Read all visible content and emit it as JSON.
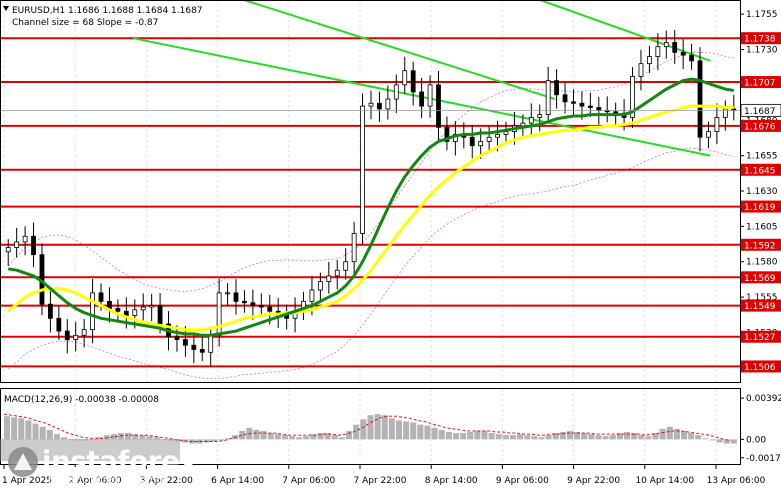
{
  "header": {
    "symbol_line": "EURUSD,H1  1.1686 1.1688 1.1684 1.1687",
    "channel_line": "Channel size = 68 Slope = -0.87"
  },
  "macd": {
    "label": "MACD(12,26,9) -0.00038 -0.00008",
    "ticks": [
      "0.00392",
      "0.00",
      "-0.00175"
    ],
    "tick_values": [
      0.00392,
      0.0,
      -0.00175
    ],
    "range": [
      -0.00215,
      0.0045
    ],
    "hist": [
      0.0022,
      0.0021,
      0.002,
      0.0018,
      0.0015,
      0.0012,
      0.0009,
      0.0005,
      0.0002,
      0.0,
      -0.0001,
      -0.0001,
      0.0,
      0.0002,
      0.0004,
      0.0005,
      0.0006,
      0.0006,
      0.0005,
      0.0004,
      0.0003,
      0.0002,
      0.0,
      -0.0001,
      -0.0002,
      -0.0003,
      -0.0004,
      -0.0004,
      -0.0003,
      -0.0002,
      -0.0001,
      0.0001,
      0.0004,
      0.0008,
      0.0011,
      0.0009,
      0.0008,
      0.0006,
      0.0005,
      0.0004,
      0.0003,
      0.0002,
      0.0003,
      0.0005,
      0.0006,
      0.0006,
      0.0004,
      0.0002,
      0.0008,
      0.0014,
      0.0019,
      0.0023,
      0.0024,
      0.0023,
      0.002,
      0.0018,
      0.0017,
      0.0016,
      0.0014,
      0.0013,
      0.0011,
      0.0009,
      0.0007,
      0.0006,
      0.0006,
      0.0007,
      0.0008,
      0.0008,
      0.0006,
      0.0005,
      0.0004,
      0.0004,
      0.0005,
      0.0004,
      0.0003,
      0.0002,
      0.0004,
      0.0006,
      0.0007,
      0.0008,
      0.0007,
      0.0006,
      0.0005,
      0.0004,
      0.0003,
      0.0004,
      0.0006,
      0.0007,
      0.0006,
      0.0004,
      0.0003,
      0.0006,
      0.001,
      0.0012,
      0.001,
      0.0008,
      0.0006,
      0.0004,
      0.0001,
      -0.0001,
      -0.0003,
      -0.0004,
      -0.0004
    ],
    "signal": [
      0.0024,
      0.0023,
      0.0022,
      0.0021,
      0.0019,
      0.0017,
      0.0015,
      0.0012,
      0.0009,
      0.0006,
      0.0004,
      0.0002,
      0.0001,
      0.0001,
      0.0001,
      0.0002,
      0.0003,
      0.0004,
      0.0004,
      0.0004,
      0.0004,
      0.0003,
      0.0002,
      0.0001,
      0.0,
      -0.0001,
      -0.0002,
      -0.0002,
      -0.0002,
      -0.0002,
      -0.0002,
      -0.0001,
      0.0001,
      0.0003,
      0.0005,
      0.0006,
      0.0006,
      0.0006,
      0.0006,
      0.0005,
      0.0004,
      0.0004,
      0.0004,
      0.0004,
      0.0004,
      0.0005,
      0.0005,
      0.0004,
      0.0005,
      0.0007,
      0.001,
      0.0014,
      0.0018,
      0.0021,
      0.0022,
      0.0022,
      0.0021,
      0.002,
      0.0018,
      0.0017,
      0.0015,
      0.0013,
      0.0011,
      0.001,
      0.0009,
      0.0008,
      0.0008,
      0.0008,
      0.0008,
      0.0007,
      0.0007,
      0.0006,
      0.0006,
      0.0005,
      0.0005,
      0.0004,
      0.0004,
      0.0005,
      0.0005,
      0.0006,
      0.0006,
      0.0006,
      0.0006,
      0.0005,
      0.0005,
      0.0005,
      0.0005,
      0.0005,
      0.0005,
      0.0005,
      0.0004,
      0.0005,
      0.0006,
      0.0007,
      0.0008,
      0.0008,
      0.0007,
      0.0006,
      0.0005,
      0.0004,
      0.0002,
      0.0,
      -0.0001
    ]
  },
  "watermark": {
    "brand": "instaforex",
    "tagline": "Instant Forex Trading"
  },
  "chart_data": {
    "type": "candlestick",
    "symbol": "EURUSD",
    "timeframe": "H1",
    "y_range": [
      1.1495,
      1.1765
    ],
    "y_ticks": [
      "1.1755",
      "1.1730",
      "1.1705",
      "1.1680",
      "1.1655",
      "1.1630",
      "1.1605",
      "1.1580",
      "1.1555",
      "1.1530",
      "1.1505"
    ],
    "x_labels": [
      "1 Apr 2025",
      "2 Apr 06:00",
      "3 Apr 22:00",
      "6 Apr 14:00",
      "7 Apr 06:00",
      "7 Apr 22:00",
      "8 Apr 14:00",
      "9 Apr 06:00",
      "9 Apr 22:00",
      "10 Apr 14:00",
      "13 Apr 06:00"
    ],
    "price_label": {
      "value": "1.1687",
      "price": 1.1687
    },
    "levels": [
      {
        "price": 1.1738,
        "label": "1.1738"
      },
      {
        "price": 1.1707,
        "label": "1.1707"
      },
      {
        "price": 1.1676,
        "label": "1.1676"
      },
      {
        "price": 1.1645,
        "label": "1.1645"
      },
      {
        "price": 1.1619,
        "label": "1.1619"
      },
      {
        "price": 1.1592,
        "label": "1.1592"
      },
      {
        "price": 1.1569,
        "label": "1.1569"
      },
      {
        "price": 1.1549,
        "label": "1.1549"
      },
      {
        "price": 1.1527,
        "label": "1.1527"
      },
      {
        "price": 1.1506,
        "label": "1.1506"
      }
    ],
    "closes": [
      1.159,
      1.1594,
      1.1598,
      1.1585,
      1.155,
      1.154,
      1.1531,
      1.1525,
      1.1528,
      1.1532,
      1.1558,
      1.1552,
      1.1547,
      1.1545,
      1.1542,
      1.1546,
      1.1548,
      1.1549,
      1.1536,
      1.1527,
      1.1525,
      1.1521,
      1.1518,
      1.1516,
      1.1528,
      1.1558,
      1.1558,
      1.1552,
      1.1551,
      1.1549,
      1.1548,
      1.1545,
      1.1542,
      1.154,
      1.1545,
      1.1552,
      1.156,
      1.1566,
      1.157,
      1.1574,
      1.158,
      1.16,
      1.169,
      1.1692,
      1.1688,
      1.1695,
      1.1705,
      1.1715,
      1.17,
      1.169,
      1.1705,
      1.1675,
      1.1665,
      1.167,
      1.1668,
      1.1662,
      1.1665,
      1.1668,
      1.167,
      1.1672,
      1.1676,
      1.1678,
      1.1682,
      1.1684,
      1.1708,
      1.1698,
      1.1693,
      1.1692,
      1.169,
      1.1689,
      1.1687,
      1.1686,
      1.1685,
      1.1682,
      1.1711,
      1.172,
      1.1725,
      1.1732,
      1.1735,
      1.1728,
      1.1726,
      1.1722,
      1.1668,
      1.1672,
      1.1682,
      1.1688,
      1.1687
    ],
    "ma_green": [
      1.1575,
      1.1574,
      1.1572,
      1.157,
      1.1566,
      1.1561,
      1.1556,
      1.1551,
      1.1547,
      1.1544,
      1.1542,
      1.154,
      1.1539,
      1.1538,
      1.1537,
      1.1536,
      1.1535,
      1.1534,
      1.1533,
      1.1531,
      1.153,
      1.1529,
      1.1529,
      1.1528,
      1.1528,
      1.1529,
      1.153,
      1.1531,
      1.1533,
      1.1535,
      1.1537,
      1.1539,
      1.1541,
      1.1543,
      1.1545,
      1.1547,
      1.1549,
      1.1552,
      1.1555,
      1.1558,
      1.1563,
      1.157,
      1.158,
      1.1592,
      1.1605,
      1.1618,
      1.163,
      1.164,
      1.1648,
      1.1655,
      1.1661,
      1.1665,
      1.1667,
      1.1669,
      1.167,
      1.167,
      1.1671,
      1.1671,
      1.1672,
      1.1673,
      1.1674,
      1.1675,
      1.1676,
      1.1677,
      1.1679,
      1.1681,
      1.1682,
      1.1683,
      1.1683,
      1.1684,
      1.1684,
      1.1684,
      1.1684,
      1.1684,
      1.1686,
      1.169,
      1.1694,
      1.1698,
      1.1702,
      1.1705,
      1.1708,
      1.1709,
      1.1708,
      1.1706,
      1.1704,
      1.1702,
      1.1701
    ],
    "ma_yellow": [
      1.1545,
      1.155,
      1.1555,
      1.1558,
      1.156,
      1.1561,
      1.1561,
      1.156,
      1.1558,
      1.1555,
      1.1552,
      1.1549,
      1.1546,
      1.1543,
      1.1541,
      1.1539,
      1.1537,
      1.1536,
      1.1535,
      1.1534,
      1.1533,
      1.1532,
      1.1532,
      1.1532,
      1.1533,
      1.1534,
      1.1536,
      1.1538,
      1.154,
      1.1541,
      1.1542,
      1.1543,
      1.1543,
      1.1544,
      1.1544,
      1.1545,
      1.1546,
      1.1548,
      1.155,
      1.1552,
      1.1556,
      1.1561,
      1.1567,
      1.1574,
      1.1582,
      1.159,
      1.1598,
      1.1606,
      1.1613,
      1.162,
      1.1627,
      1.1633,
      1.1638,
      1.1643,
      1.1647,
      1.1651,
      1.1655,
      1.1658,
      1.1661,
      1.1664,
      1.1666,
      1.1668,
      1.1669,
      1.167,
      1.1671,
      1.1672,
      1.1673,
      1.1673,
      1.1674,
      1.1675,
      1.1675,
      1.1676,
      1.1676,
      1.1677,
      1.1678,
      1.168,
      1.1682,
      1.1684,
      1.1686,
      1.1687,
      1.1689,
      1.169,
      1.169,
      1.169,
      1.169,
      1.1689,
      1.1689
    ],
    "channel_green": [
      {
        "from": [
          0.33,
          1.1765
        ],
        "to": [
          0.75,
          1.1695
        ]
      },
      {
        "from": [
          0.18,
          1.1738
        ],
        "to": [
          0.96,
          1.1655
        ]
      },
      {
        "from": [
          0.73,
          1.1765
        ],
        "to": [
          0.96,
          1.1722
        ]
      }
    ]
  }
}
